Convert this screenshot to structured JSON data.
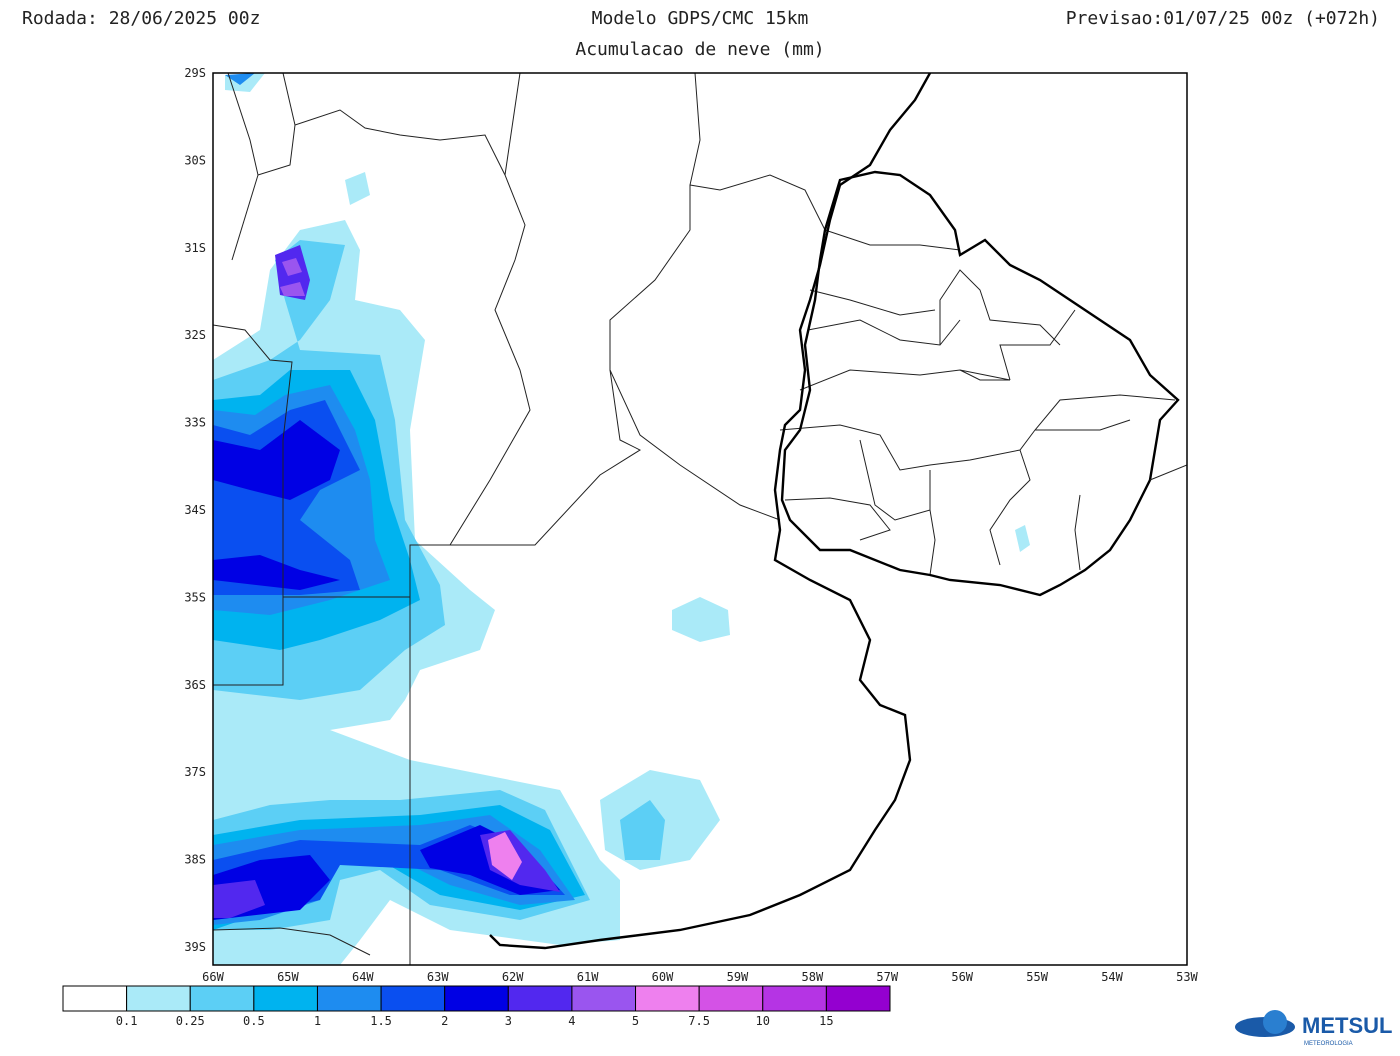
{
  "header": {
    "left": "Rodada: 28/06/2025 00z",
    "center": "Modelo GDPS/CMC 15km",
    "right": "Previsao:01/07/25 00z (+072h)",
    "subtitle": "Acumulacao de neve (mm)"
  },
  "map": {
    "lat_labels": [
      "29S",
      "30S",
      "31S",
      "32S",
      "33S",
      "34S",
      "35S",
      "36S",
      "37S",
      "38S",
      "39S"
    ],
    "lon_labels": [
      "66W",
      "65W",
      "64W",
      "63W",
      "62W",
      "61W",
      "60W",
      "59W",
      "58W",
      "57W",
      "56W",
      "55W",
      "54W",
      "53W"
    ]
  },
  "colorbar": {
    "colors": [
      "#ffffff",
      "#aaeaf8",
      "#5ccff5",
      "#00b3ef",
      "#1e8cf0",
      "#0a4ff0",
      "#0000e4",
      "#5228ef",
      "#9a55ef",
      "#ee80ee",
      "#d452e6",
      "#b534e4",
      "#9400d0"
    ],
    "labels": [
      "0.1",
      "0.25",
      "0.5",
      "1",
      "1.5",
      "2",
      "3",
      "4",
      "5",
      "7.5",
      "10",
      "15"
    ]
  },
  "logo": {
    "name": "METSUL",
    "tagline": "METEOROLOGIA"
  }
}
